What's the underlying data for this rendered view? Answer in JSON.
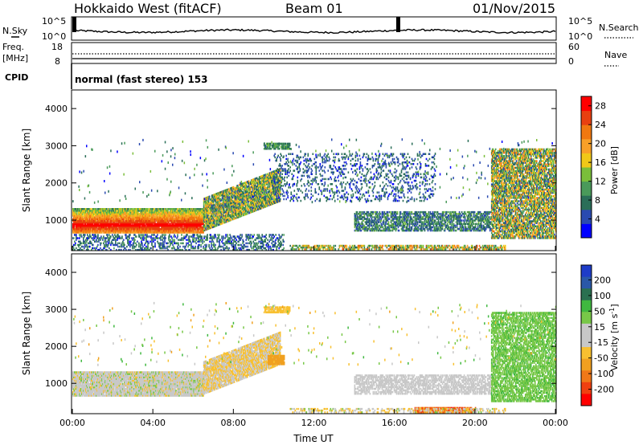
{
  "header": {
    "station": "Hokkaido West (fitACF)",
    "beam": "Beam 01",
    "date": "01/Nov/2015"
  },
  "noise_panel": {
    "left_label": "N.Sky",
    "right_label": "N.Search",
    "left_ticks": [
      "10^5",
      "10^0"
    ],
    "right_ticks": [
      "10^5",
      "10^0"
    ]
  },
  "freq_panel": {
    "left_label_1": "Freq.",
    "left_label_2": "[MHz]",
    "left_ticks": [
      "18",
      "8"
    ],
    "right_label": "Nave",
    "right_ticks": [
      "60",
      "0"
    ]
  },
  "cpid": {
    "label": "CPID",
    "value": "normal (fast stereo) 153"
  },
  "colors": {
    "power": [
      "#0000ff",
      "#2a4ab0",
      "#2a6e58",
      "#4a9a5a",
      "#7abe3a",
      "#f0c818",
      "#f8a028",
      "#f07810",
      "#e84010",
      "#ff0000"
    ],
    "velocity_neg": [
      "#c8c8c8",
      "#f8c030",
      "#f0a020",
      "#f07818",
      "#f04010",
      "#ff0000"
    ],
    "velocity_pos": [
      "#c8c8c8",
      "#78c848",
      "#40b840",
      "#2a7050",
      "#2a58a8",
      "#1e3cc8"
    ]
  },
  "chart_data": [
    {
      "type": "heatmap",
      "name": "power",
      "ylabel": "Slant Range [km]",
      "xlabel": "",
      "y_ticks": [
        1000,
        2000,
        3000,
        4000
      ],
      "ylim": [
        180,
        4500
      ],
      "x_ticks": [
        "00:00",
        "04:00",
        "08:00",
        "12:00",
        "16:00",
        "20:00",
        "00:00"
      ],
      "xlim_hours": [
        0,
        24
      ],
      "colorbar": {
        "label": "Power [dB]",
        "ticks": [
          4,
          8,
          12,
          16,
          20,
          24,
          28
        ],
        "range": [
          0,
          30
        ]
      },
      "regions": [
        {
          "t0": 0,
          "t1": 6.5,
          "r0": 650,
          "r1": 1300,
          "density": 0.95,
          "vmin": 6,
          "vmax": 30,
          "peak_r": 850
        },
        {
          "t0": 6.5,
          "t1": 10.3,
          "r0": 900,
          "r1": 1800,
          "density": 0.85,
          "vmin": 4,
          "vmax": 22,
          "drift_start": 700,
          "drift_end": 1500
        },
        {
          "t0": 0,
          "t1": 10.5,
          "r0": 180,
          "r1": 600,
          "density": 0.35,
          "vmin": 2,
          "vmax": 12
        },
        {
          "t0": 10.8,
          "t1": 21.5,
          "r0": 200,
          "r1": 330,
          "density": 0.55,
          "vmin": 6,
          "vmax": 26
        },
        {
          "t0": 14,
          "t1": 20.8,
          "r0": 700,
          "r1": 1200,
          "density": 0.6,
          "vmin": 3,
          "vmax": 14
        },
        {
          "t0": 10,
          "t1": 18,
          "r0": 1500,
          "r1": 2800,
          "density": 0.18,
          "vmin": 2,
          "vmax": 10
        },
        {
          "t0": 20.8,
          "t1": 24,
          "r0": 500,
          "r1": 2900,
          "density": 0.7,
          "vmin": 4,
          "vmax": 24
        },
        {
          "t0": 9.5,
          "t1": 10.8,
          "r0": 2900,
          "r1": 3050,
          "density": 0.8,
          "vmin": 6,
          "vmax": 14
        }
      ]
    },
    {
      "type": "heatmap",
      "name": "velocity",
      "ylabel": "Slant Range [km]",
      "xlabel": "Time UT",
      "y_ticks": [
        1000,
        2000,
        3000,
        4000
      ],
      "ylim": [
        180,
        4500
      ],
      "x_ticks": [
        "00:00",
        "04:00",
        "08:00",
        "12:00",
        "16:00",
        "20:00",
        "00:00"
      ],
      "xlim_hours": [
        0,
        24
      ],
      "colorbar": {
        "label": "Velocity [m s^-1]",
        "ticks": [
          -200,
          -100,
          -50,
          -15,
          15,
          50,
          100,
          200
        ]
      },
      "regions": [
        {
          "t0": 0,
          "t1": 6.5,
          "r0": 650,
          "r1": 1300,
          "density": 0.95,
          "vmin": -20,
          "vmax": 20
        },
        {
          "t0": 6.5,
          "t1": 10.3,
          "r0": 900,
          "r1": 1800,
          "density": 0.85,
          "vmin": -40,
          "vmax": 10,
          "drift_start": 700,
          "drift_end": 1500
        },
        {
          "t0": 9.7,
          "t1": 10.5,
          "r0": 1500,
          "r1": 1750,
          "density": 0.9,
          "vmin": -90,
          "vmax": -50
        },
        {
          "t0": 17,
          "t1": 20,
          "r0": 180,
          "r1": 320,
          "density": 0.9,
          "vmin": -220,
          "vmax": -60
        },
        {
          "t0": 10.8,
          "t1": 21.5,
          "r0": 200,
          "r1": 330,
          "density": 0.4,
          "vmin": -40,
          "vmax": 20
        },
        {
          "t0": 14,
          "t1": 20.8,
          "r0": 700,
          "r1": 1200,
          "density": 0.6,
          "vmin": -14,
          "vmax": 14
        },
        {
          "t0": 20.8,
          "t1": 24,
          "r0": 500,
          "r1": 2900,
          "density": 0.65,
          "vmin": 15,
          "vmax": 60
        },
        {
          "t0": 9.5,
          "t1": 10.8,
          "r0": 2900,
          "r1": 3050,
          "density": 0.8,
          "vmin": -40,
          "vmax": -15
        }
      ]
    }
  ]
}
